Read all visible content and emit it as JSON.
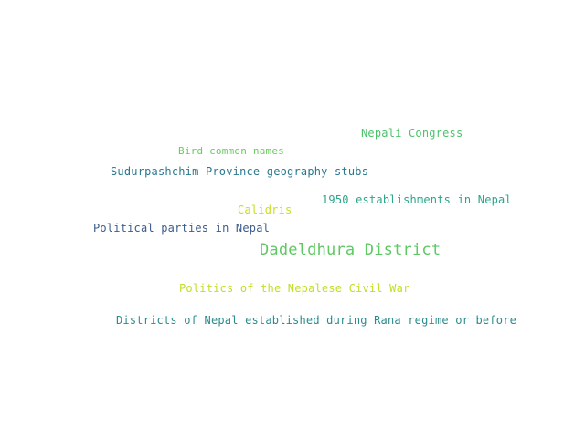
{
  "word_cloud": {
    "words": [
      {
        "text": "Nepali Congress",
        "color": "#4cc26b"
      },
      {
        "text": "Bird common names",
        "color": "#67cc5c"
      },
      {
        "text": "Sudurpashchim Province geography stubs",
        "color": "#2a788e"
      },
      {
        "text": "1950 establishments in Nepal",
        "color": "#2aa58a"
      },
      {
        "text": "Calidris",
        "color": "#c8e020"
      },
      {
        "text": "Political parties in Nepal",
        "color": "#3b5c8c"
      },
      {
        "text": "Dadeldhura District",
        "color": "#5ec962"
      },
      {
        "text": "Politics of the Nepalese Civil War",
        "color": "#c0df25"
      },
      {
        "text": "Districts of Nepal established during Rana regime or before",
        "color": "#2a8b8c"
      }
    ]
  }
}
